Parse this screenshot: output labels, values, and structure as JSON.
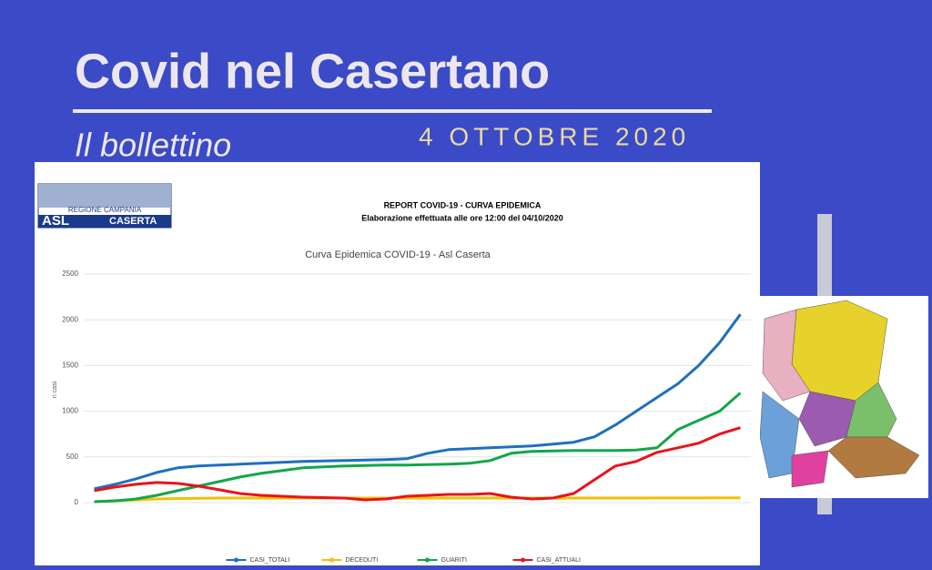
{
  "header": {
    "title": "Covid nel Casertano",
    "subtitle": "Il bollettino",
    "date": "4 OTTOBRE 2020",
    "logo_top": "REGIONE CAMPANIA",
    "logo_main": "ASL",
    "logo_side": "CASERTA",
    "report_title": "REPORT COVID-19 - CURVA EPIDEMICA",
    "report_subtitle": "Elaborazione effettuata alle ore 12:00 del 04/10/2020"
  },
  "chart_data": {
    "type": "line",
    "title": "Curva Epidemica COVID-19 - Asl Caserta",
    "y_label": "n casi",
    "categories": [
      null,
      null,
      null,
      null,
      null,
      null,
      null,
      null,
      null,
      null,
      null,
      null,
      null,
      null,
      null,
      null,
      null,
      null,
      null,
      null,
      null,
      null,
      null,
      null,
      null,
      null,
      null,
      null,
      null,
      null,
      null,
      null
    ],
    "series": [
      {
        "name": "CASI_TOTALI",
        "color": "#1f6fc0",
        "values": [
          150,
          200,
          260,
          330,
          380,
          400,
          410,
          420,
          430,
          440,
          450,
          455,
          460,
          465,
          470,
          480,
          540,
          580,
          590,
          600,
          610,
          620,
          640,
          660,
          720,
          850,
          1000,
          1150,
          1300,
          1500,
          1750,
          2060
        ]
      },
      {
        "name": "DECEDUTI",
        "color": "#f5c000",
        "values": [
          10,
          20,
          30,
          40,
          45,
          48,
          50,
          50,
          50,
          50,
          50,
          50,
          50,
          50,
          50,
          50,
          50,
          50,
          50,
          50,
          50,
          50,
          50,
          50,
          50,
          50,
          50,
          51,
          51,
          51,
          52,
          52
        ]
      },
      {
        "name": "GUARITI",
        "color": "#12a64a",
        "values": [
          10,
          20,
          40,
          80,
          130,
          180,
          230,
          280,
          320,
          350,
          380,
          390,
          400,
          405,
          410,
          410,
          415,
          420,
          430,
          460,
          540,
          560,
          565,
          570,
          570,
          570,
          575,
          600,
          800,
          900,
          1000,
          1200
        ]
      },
      {
        "name": "CASI_ATTUALI",
        "color": "#e8141a",
        "values": [
          130,
          170,
          200,
          220,
          210,
          180,
          140,
          100,
          80,
          70,
          60,
          55,
          50,
          30,
          40,
          70,
          80,
          90,
          90,
          100,
          60,
          40,
          50,
          100,
          250,
          400,
          450,
          550,
          600,
          650,
          750,
          820
        ]
      }
    ],
    "ylim": [
      0,
      2500
    ],
    "yticks": [
      0,
      500,
      1000,
      1500,
      2000,
      2500
    ],
    "grid": true,
    "legend": "bottom"
  }
}
